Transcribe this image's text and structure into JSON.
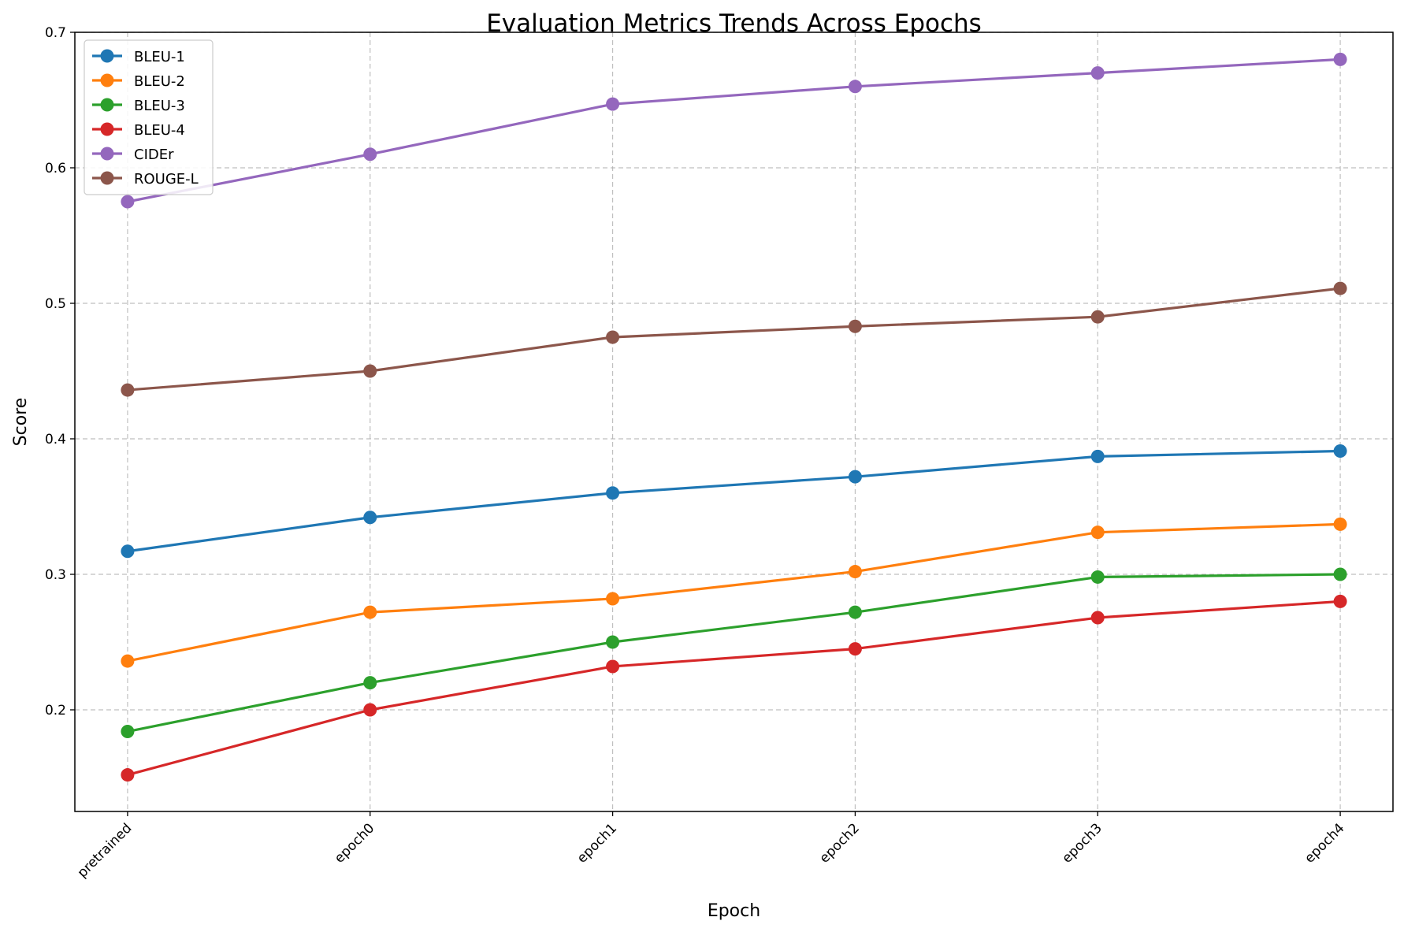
{
  "chart_data": {
    "type": "line",
    "title": "Evaluation Metrics Trends Across Epochs",
    "xlabel": "Epoch",
    "ylabel": "Score",
    "categories": [
      "pretrained",
      "epoch0",
      "epoch1",
      "epoch2",
      "epoch3",
      "epoch4"
    ],
    "ylim": [
      0.125,
      0.7
    ],
    "yticks": [
      "0.2",
      "0.3",
      "0.4",
      "0.5",
      "0.6",
      "0.7"
    ],
    "grid": true,
    "legend_position": "top-left",
    "series": [
      {
        "name": "BLEU-1",
        "color": "#1f77b4",
        "values": [
          0.317,
          0.342,
          0.36,
          0.372,
          0.387,
          0.391
        ]
      },
      {
        "name": "BLEU-2",
        "color": "#ff7f0e",
        "values": [
          0.236,
          0.272,
          0.282,
          0.302,
          0.331,
          0.337
        ]
      },
      {
        "name": "BLEU-3",
        "color": "#2ca02c",
        "values": [
          0.184,
          0.22,
          0.25,
          0.272,
          0.298,
          0.3
        ]
      },
      {
        "name": "BLEU-4",
        "color": "#d62728",
        "values": [
          0.152,
          0.2,
          0.232,
          0.245,
          0.268,
          0.28
        ]
      },
      {
        "name": "CIDEr",
        "color": "#9467bd",
        "values": [
          0.575,
          0.61,
          0.647,
          0.66,
          0.67,
          0.68
        ]
      },
      {
        "name": "ROUGE-L",
        "color": "#8c564b",
        "values": [
          0.436,
          0.45,
          0.475,
          0.483,
          0.49,
          0.511
        ]
      }
    ]
  }
}
